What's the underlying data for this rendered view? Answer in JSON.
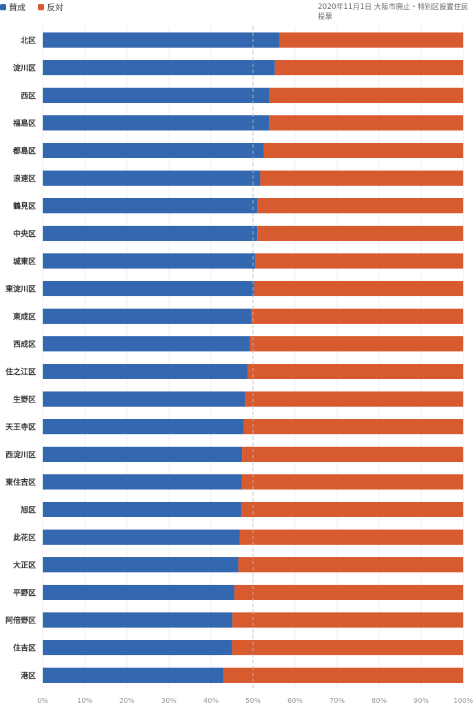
{
  "chart_data": {
    "type": "bar",
    "stacked": "percent",
    "orientation": "horizontal",
    "title": "2020年11月1日 大阪市廃止・特別区設置住民投票",
    "categories": [
      "北区",
      "淀川区",
      "西区",
      "福島区",
      "都島区",
      "浪速区",
      "鶴見区",
      "中央区",
      "城東区",
      "東淀川区",
      "東成区",
      "西成区",
      "住之江区",
      "生野区",
      "天王寺区",
      "西淀川区",
      "東住吉区",
      "旭区",
      "此花区",
      "大正区",
      "平野区",
      "阿倍野区",
      "住吉区",
      "港区"
    ],
    "series": [
      {
        "name": "賛成",
        "color": "#3367b0",
        "values": [
          56.3,
          55.2,
          53.9,
          53.8,
          52.6,
          51.7,
          51.1,
          51.0,
          50.5,
          50.3,
          49.6,
          49.3,
          48.7,
          48.1,
          47.8,
          47.4,
          47.3,
          47.2,
          46.8,
          46.5,
          45.6,
          45.1,
          45.0,
          43.0
        ]
      },
      {
        "name": "反対",
        "color": "#d85b30",
        "values": [
          43.7,
          44.8,
          46.1,
          46.2,
          47.4,
          48.3,
          48.9,
          49.0,
          49.5,
          49.7,
          50.4,
          50.7,
          51.3,
          51.9,
          52.2,
          52.6,
          52.7,
          52.8,
          53.2,
          53.5,
          54.4,
          54.9,
          55.0,
          57.0
        ]
      }
    ],
    "xticks": [
      "0%",
      "10%",
      "20%",
      "30%",
      "40%",
      "50%",
      "60%",
      "70%",
      "80%",
      "90%",
      "100%"
    ],
    "xlim": [
      0,
      100
    ],
    "reference_line": 50,
    "grid": true,
    "legend": "top-left"
  }
}
